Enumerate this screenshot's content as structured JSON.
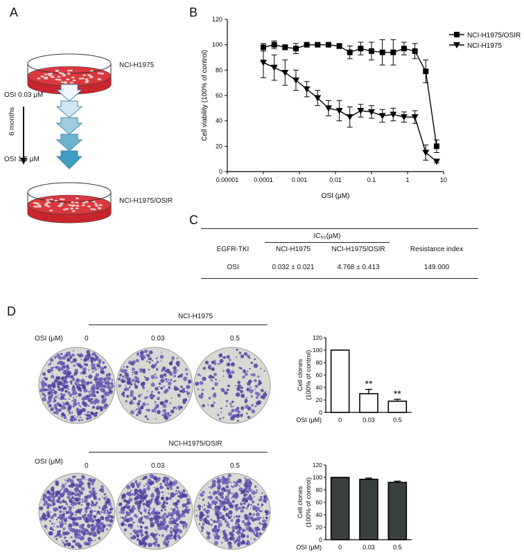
{
  "panels": {
    "A": {
      "label": "A",
      "top_cell": "NCI-H1975",
      "bottom_cell": "NCI-H1975/OSIR",
      "dose_start": "OSI 0.03 μM",
      "dose_end": "OSI 1.5 μM",
      "duration": "6 months"
    },
    "B": {
      "label": "B",
      "chart_data": {
        "type": "line",
        "xlabel": "OSI (μM)",
        "ylabel": "Cell viability (100% of control)",
        "xscale": "log",
        "xlim": [
          1e-05,
          10
        ],
        "ylim": [
          0,
          120
        ],
        "x_ticks": [
          "0.00001",
          "0.0001",
          "0.001",
          "0.01",
          "0.1",
          "1",
          "10"
        ],
        "y_ticks": [
          "0",
          "20",
          "40",
          "60",
          "80",
          "100",
          "120"
        ],
        "legend_position": "top-right",
        "series": [
          {
            "name": "NCI-H1975/OSIR",
            "marker": "square",
            "x": [
              0.0001,
              0.0002,
              0.0004,
              0.0008,
              0.0016,
              0.0032,
              0.0064,
              0.0128,
              0.025,
              0.05,
              0.1,
              0.2,
              0.4,
              0.8,
              1.6,
              3.2,
              6.4
            ],
            "y": [
              98,
              100,
              98,
              97,
              100,
              100,
              100,
              99,
              94,
              97,
              95,
              94,
              94,
              97,
              95,
              79,
              20
            ],
            "err": [
              3,
              3,
              2,
              4,
              1,
              1,
              1,
              2,
              5,
              5,
              7,
              10,
              10,
              5,
              6,
              9,
              5
            ]
          },
          {
            "name": "NCI-H1975",
            "marker": "triangle-down",
            "x": [
              0.0001,
              0.0002,
              0.0004,
              0.0008,
              0.0016,
              0.0032,
              0.0064,
              0.0128,
              0.025,
              0.05,
              0.1,
              0.2,
              0.4,
              0.8,
              1.6,
              3.2,
              6.4
            ],
            "y": [
              86,
              82,
              78,
              72,
              65,
              58,
              50,
              48,
              43,
              48,
              47,
              44,
              45,
              43,
              43,
              15,
              8
            ],
            "err": [
              12,
              10,
              10,
              8,
              6,
              6,
              6,
              8,
              8,
              5,
              5,
              5,
              5,
              4,
              5,
              6,
              1
            ]
          }
        ]
      }
    },
    "C": {
      "label": "C",
      "ic50_header": "IC₅₀(μM)",
      "columns": [
        "EGFR-TKI",
        "NCI-H1975",
        "NCI-H1975/OSIR",
        "Resistance index"
      ],
      "rows": [
        [
          "OSI",
          "0.032 ± 0.021",
          "4.768 ± 0.413",
          "149.000"
        ]
      ]
    },
    "D": {
      "label": "D",
      "osi_label": "OSI (μM)",
      "rows": [
        {
          "cell_line": "NCI-H1975",
          "doses": [
            "0",
            "0.03",
            "0.5"
          ],
          "chart_data": {
            "type": "bar",
            "categories": [
              "0",
              "0.03",
              "0.5"
            ],
            "values": [
              100,
              30,
              18
            ],
            "err": [
              0,
              7,
              3
            ],
            "annotations": [
              "",
              "**",
              "**"
            ],
            "ylabel": "Cell clones (100% of control)",
            "xlabel": "OSI (μM)",
            "ylim": [
              0,
              120
            ],
            "y_ticks": [
              "0",
              "20",
              "40",
              "60",
              "80",
              "100",
              "120"
            ],
            "fill": "#ffffff"
          }
        },
        {
          "cell_line": "NCI-H1975/OSIR",
          "doses": [
            "0",
            "0.03",
            "0.5"
          ],
          "chart_data": {
            "type": "bar",
            "categories": [
              "0",
              "0.03",
              "0.5"
            ],
            "values": [
              100,
              97,
              92
            ],
            "err": [
              0,
              2,
              2
            ],
            "annotations": [
              "",
              "",
              ""
            ],
            "ylabel": "Cell clones (100% of control)",
            "xlabel": "OSI (μM)",
            "ylim": [
              0,
              120
            ],
            "y_ticks": [
              "0",
              "20",
              "40",
              "60",
              "80",
              "100",
              "120"
            ],
            "fill": "#3a3f3f"
          }
        }
      ],
      "colony_density": [
        [
          0.9,
          0.45,
          0.3
        ],
        [
          0.9,
          0.85,
          0.8
        ]
      ]
    }
  }
}
